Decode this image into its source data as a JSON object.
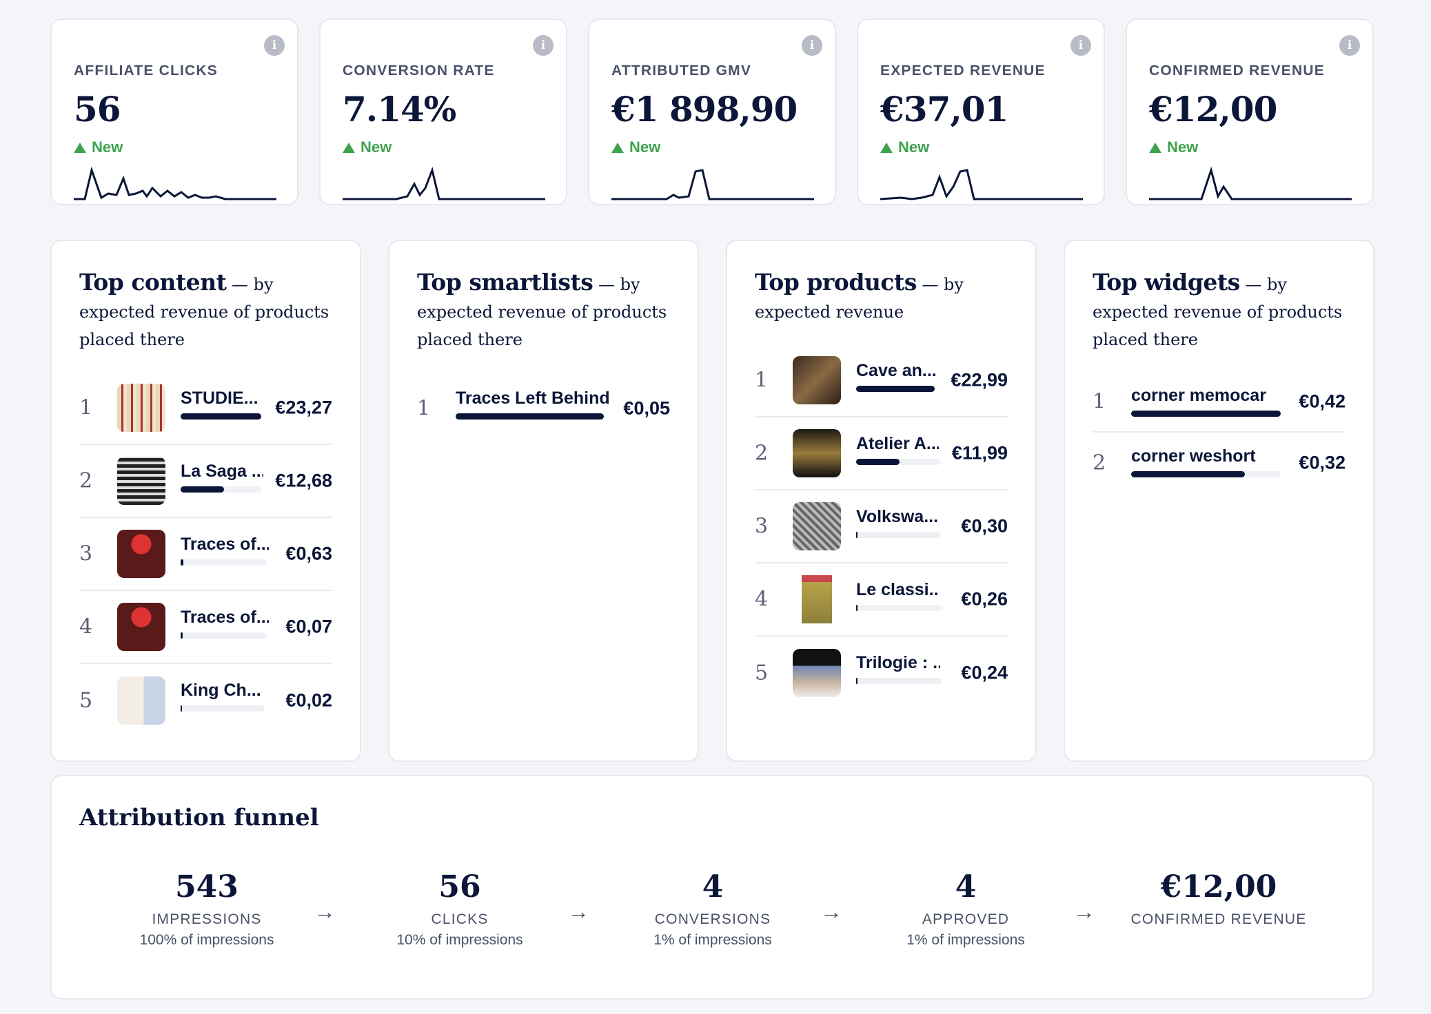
{
  "colors": {
    "navy": "#0b1638",
    "green": "#3fa34d",
    "track": "#eef0f5"
  },
  "kpis": [
    {
      "label": "AFFILIATE CLICKS",
      "value": "56",
      "delta": "New",
      "info": "i"
    },
    {
      "label": "CONVERSION RATE",
      "value": "7.14%",
      "delta": "New",
      "info": "i"
    },
    {
      "label": "ATTRIBUTED GMV",
      "value": "€1 898,90",
      "delta": "New",
      "info": "i"
    },
    {
      "label": "EXPECTED REVENUE",
      "value": "€37,01",
      "delta": "New",
      "info": "i"
    },
    {
      "label": "CONFIRMED REVENUE",
      "value": "€12,00",
      "delta": "New",
      "info": "i"
    }
  ],
  "top_content": {
    "title": "Top content",
    "subtitle": " — by expected revenue of products placed there",
    "rows": [
      {
        "rank": "1",
        "name": "STUDIE...",
        "value": "€23,27",
        "share": 1.0
      },
      {
        "rank": "2",
        "name": "La Saga ...",
        "value": "€12,68",
        "share": 0.54
      },
      {
        "rank": "3",
        "name": "Traces of...",
        "value": "€0,63",
        "share": 0.03
      },
      {
        "rank": "4",
        "name": "Traces of...",
        "value": "€0,07",
        "share": 0.0
      },
      {
        "rank": "5",
        "name": "King Ch...",
        "value": "€0,02",
        "share": 0.0
      }
    ]
  },
  "top_smartlists": {
    "title": "Top smartlists",
    "subtitle": " — by expected revenue of products placed there",
    "rows": [
      {
        "rank": "1",
        "name": "Traces Left Behind",
        "value": "€0,05",
        "share": 1.0
      }
    ]
  },
  "top_products": {
    "title": "Top products",
    "subtitle": " — by expected revenue",
    "rows": [
      {
        "rank": "1",
        "name": "Cave an...",
        "value": "€22,99",
        "share": 1.0
      },
      {
        "rank": "2",
        "name": "Atelier A...",
        "value": "€11,99",
        "share": 0.52
      },
      {
        "rank": "3",
        "name": "Volkswa...",
        "value": "€0,30",
        "share": 0.01
      },
      {
        "rank": "4",
        "name": "Le classi...",
        "value": "€0,26",
        "share": 0.01
      },
      {
        "rank": "5",
        "name": "Trilogie : ...",
        "value": "€0,24",
        "share": 0.01
      }
    ]
  },
  "top_widgets": {
    "title": "Top widgets",
    "subtitle": " — by expected revenue of products placed there",
    "rows": [
      {
        "rank": "1",
        "name": "corner memocar",
        "value": "€0,42",
        "share": 1.0
      },
      {
        "rank": "2",
        "name": "corner weshort",
        "value": "€0,32",
        "share": 0.76
      }
    ]
  },
  "funnel": {
    "title": "Attribution funnel",
    "stages": [
      {
        "value": "543",
        "label": "IMPRESSIONS",
        "pct": "100% of impressions"
      },
      {
        "value": "56",
        "label": "CLICKS",
        "pct": "10% of impressions"
      },
      {
        "value": "4",
        "label": "CONVERSIONS",
        "pct": "1% of impressions"
      },
      {
        "value": "4",
        "label": "APPROVED",
        "pct": "1% of impressions"
      },
      {
        "value": "€12,00",
        "label": "CONFIRMED REVENUE",
        "pct": ""
      }
    ],
    "arrow": "→"
  }
}
